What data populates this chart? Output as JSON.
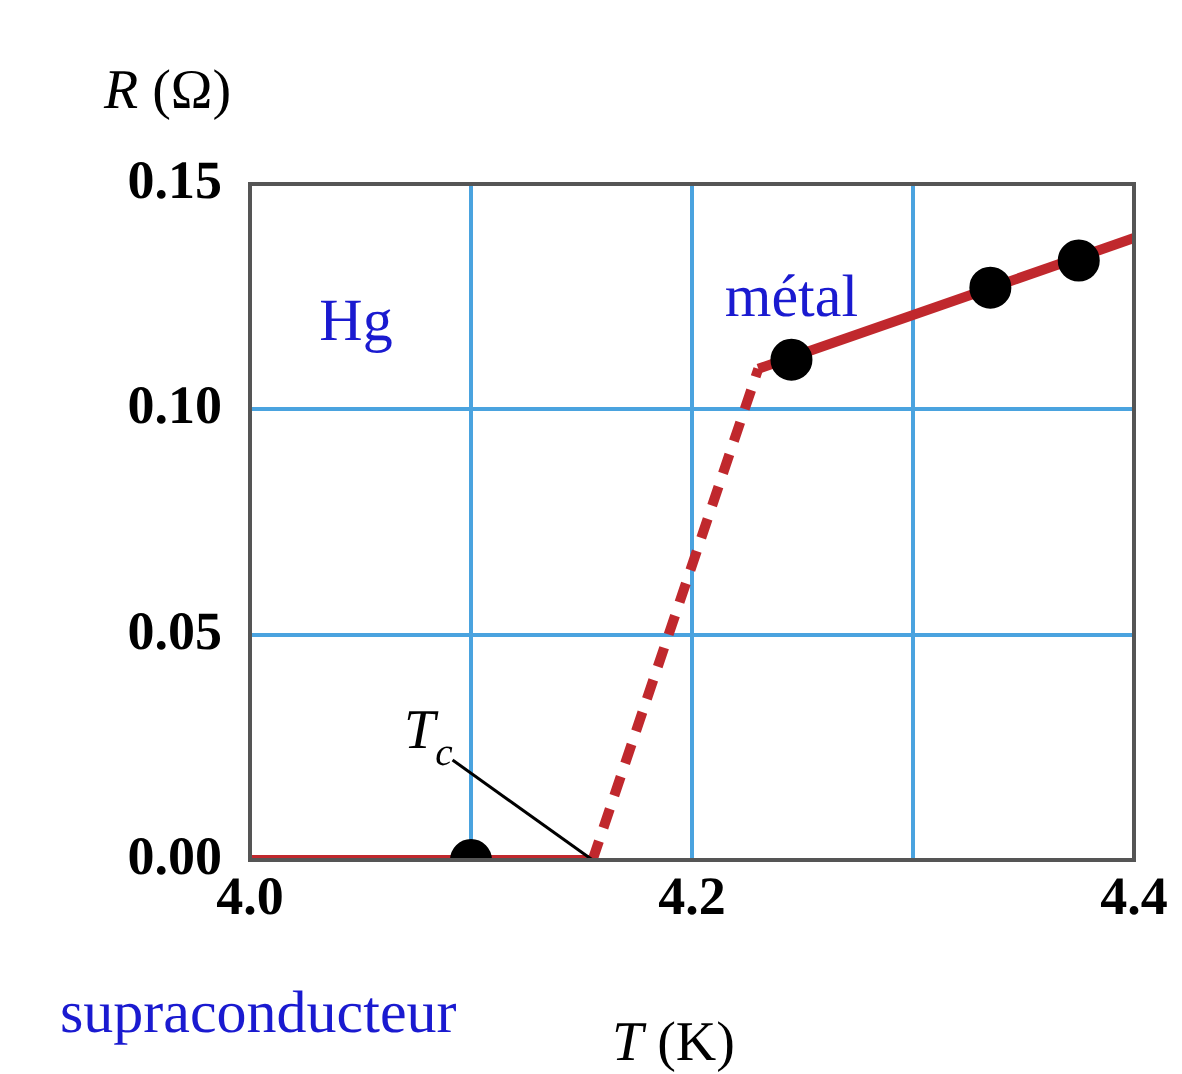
{
  "chart_data": {
    "type": "line",
    "xlabel": "T (K)",
    "ylabel": "R (Ω)",
    "xlim": [
      4.0,
      4.4
    ],
    "ylim": [
      0,
      0.15
    ],
    "xticks": [
      {
        "value": 4.0,
        "label": "4.0"
      },
      {
        "value": 4.1,
        "label": null
      },
      {
        "value": 4.2,
        "label": "4.2"
      },
      {
        "value": 4.3,
        "label": null
      },
      {
        "value": 4.4,
        "label": "4.4"
      }
    ],
    "yticks": [
      {
        "value": 0,
        "label": "0.00"
      },
      {
        "value": 0.05,
        "label": "0.05"
      },
      {
        "value": 0.1,
        "label": "0.10"
      },
      {
        "value": 0.15,
        "label": "0.15"
      }
    ],
    "grid": true,
    "legend": false,
    "series": [
      {
        "x": [
          4.0,
          4.155
        ],
        "values": [
          0,
          0
        ],
        "color": "#c0282d",
        "line_style": "solid"
      },
      {
        "x": [
          4.155,
          4.23
        ],
        "values": [
          0,
          0.109
        ],
        "color": "#c0282d",
        "line_style": "dashed"
      },
      {
        "x": [
          4.23,
          4.4
        ],
        "values": [
          0.109,
          0.138
        ],
        "color": "#c0282d",
        "line_style": "solid"
      },
      {
        "type": "scatter",
        "x": [
          4.1,
          4.245,
          4.335,
          4.375
        ],
        "values": [
          0,
          0.111,
          0.127,
          0.133
        ],
        "color": "#000000",
        "marker": "circle"
      }
    ],
    "annotations": [
      "Hg",
      {
        "text": "métal",
        "x": 4.245,
        "y": 0.111
      },
      {
        "text": "T$_{c}$",
        "x": 4.155,
        "y": 0
      },
      "supraconducteur"
    ]
  }
}
